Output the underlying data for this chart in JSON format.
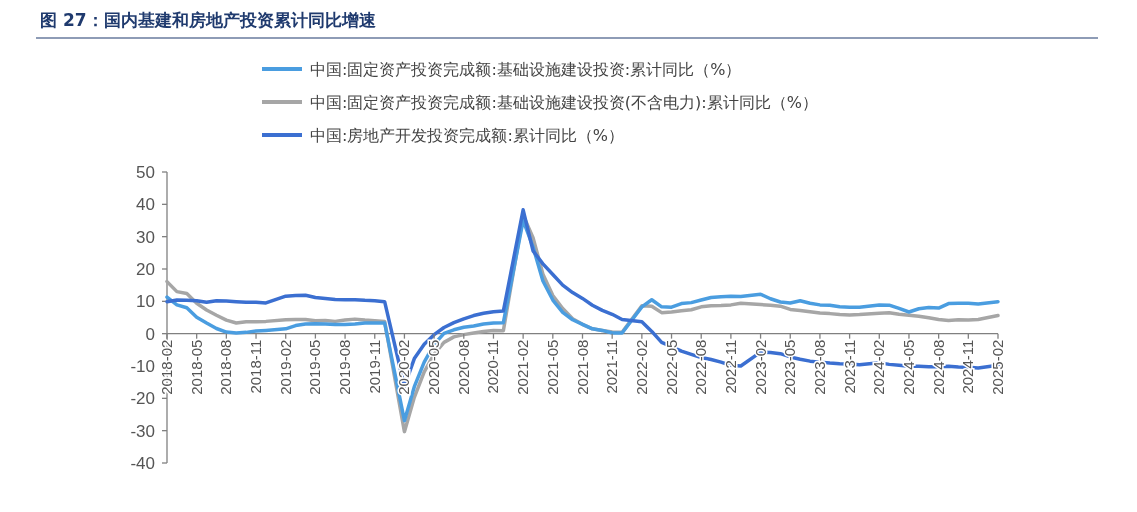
{
  "chart_data": {
    "type": "line",
    "title": "图 27：国内基建和房地产投资累计同比增速",
    "x": [
      "2018-02",
      "2018-03",
      "2018-04",
      "2018-05",
      "2018-06",
      "2018-07",
      "2018-08",
      "2018-09",
      "2018-10",
      "2018-11",
      "2018-12",
      "2019-02",
      "2019-03",
      "2019-04",
      "2019-05",
      "2019-06",
      "2019-07",
      "2019-08",
      "2019-09",
      "2019-10",
      "2019-11",
      "2019-12",
      "2020-02",
      "2020-03",
      "2020-04",
      "2020-05",
      "2020-06",
      "2020-07",
      "2020-08",
      "2020-09",
      "2020-10",
      "2020-11",
      "2020-12",
      "2021-02",
      "2021-03",
      "2021-04",
      "2021-05",
      "2021-06",
      "2021-07",
      "2021-08",
      "2021-09",
      "2021-10",
      "2021-11",
      "2021-12",
      "2022-02",
      "2022-03",
      "2022-04",
      "2022-05",
      "2022-06",
      "2022-07",
      "2022-08",
      "2022-09",
      "2022-10",
      "2022-11",
      "2022-12",
      "2023-02",
      "2023-03",
      "2023-04",
      "2023-05",
      "2023-06",
      "2023-07",
      "2023-08",
      "2023-09",
      "2023-10",
      "2023-11",
      "2023-12",
      "2024-02",
      "2024-03",
      "2024-04",
      "2024-05",
      "2024-06",
      "2024-07",
      "2024-08",
      "2024-09",
      "2024-10",
      "2024-11",
      "2024-12",
      "2025-02"
    ],
    "series": [
      {
        "name": "中国:固定资产投资完成额:基础设施建设投资:累计同比（%）",
        "color": "#4a9de0",
        "values": [
          11.3,
          8.9,
          8.0,
          5.1,
          3.3,
          1.6,
          0.5,
          0.2,
          0.4,
          0.8,
          1.0,
          1.5,
          2.5,
          3.0,
          3.1,
          3.0,
          2.8,
          2.8,
          3.0,
          3.3,
          3.3,
          3.3,
          -26.9,
          -16.4,
          -8.8,
          -3.3,
          0.1,
          1.2,
          2.0,
          2.4,
          3.0,
          3.3,
          3.4,
          35.0,
          26.8,
          16.3,
          10.4,
          6.6,
          4.3,
          2.9,
          1.5,
          1.0,
          0.2,
          0.2,
          8.3,
          10.5,
          8.3,
          8.2,
          9.3,
          9.6,
          10.4,
          11.2,
          11.4,
          11.6,
          11.5,
          12.2,
          10.8,
          9.8,
          9.5,
          10.2,
          9.4,
          8.9,
          8.8,
          8.3,
          8.2,
          8.2,
          8.9,
          8.8,
          7.8,
          6.7,
          7.7,
          8.1,
          7.9,
          9.3,
          9.4,
          9.4,
          9.2,
          9.9
        ]
      },
      {
        "name": "中国:固定资产投资完成额:基础设施建设投资(不含电力):累计同比（%）",
        "color": "#a6a6a6",
        "values": [
          16.1,
          13.0,
          12.4,
          9.4,
          7.3,
          5.7,
          4.2,
          3.3,
          3.7,
          3.7,
          3.8,
          4.3,
          4.4,
          4.4,
          4.0,
          4.1,
          3.8,
          4.2,
          4.5,
          4.2,
          4.0,
          3.8,
          -30.3,
          -19.7,
          -11.8,
          -6.3,
          -2.7,
          -1.0,
          -0.3,
          0.2,
          0.7,
          1.0,
          0.9,
          36.6,
          29.7,
          18.4,
          11.8,
          7.8,
          4.6,
          2.9,
          1.5,
          1.0,
          0.5,
          0.4,
          8.6,
          8.5,
          6.5,
          6.7,
          7.1,
          7.4,
          8.3,
          8.6,
          8.7,
          8.9,
          9.4,
          9.0,
          8.8,
          8.5,
          7.5,
          7.2,
          6.8,
          6.4,
          6.2,
          5.9,
          5.8,
          5.9,
          6.3,
          6.5,
          6.0,
          5.7,
          5.4,
          4.9,
          4.4,
          4.1,
          4.3,
          4.2,
          4.4,
          5.6
        ]
      },
      {
        "name": "中国:房地产开发投资完成额:累计同比（%）",
        "color": "#3b6fd1",
        "values": [
          9.9,
          10.4,
          10.3,
          10.2,
          9.7,
          10.2,
          10.1,
          9.9,
          9.7,
          9.7,
          9.5,
          11.6,
          11.8,
          11.9,
          11.2,
          10.9,
          10.6,
          10.5,
          10.5,
          10.3,
          10.2,
          9.9,
          -16.3,
          -7.7,
          -3.3,
          -0.3,
          1.9,
          3.4,
          4.6,
          5.6,
          6.3,
          6.8,
          7.0,
          38.3,
          25.6,
          21.6,
          18.3,
          15.0,
          12.7,
          10.9,
          8.8,
          7.2,
          6.0,
          4.4,
          3.7,
          0.7,
          -2.7,
          -4.0,
          -5.4,
          -6.4,
          -7.4,
          -8.0,
          -8.8,
          -9.8,
          -10.0,
          -5.7,
          -5.8,
          -6.2,
          -7.2,
          -7.9,
          -8.5,
          -8.8,
          -9.1,
          -9.3,
          -9.4,
          -9.6,
          -9.0,
          -9.5,
          -9.8,
          -10.1,
          -10.1,
          -10.2,
          -10.2,
          -10.1,
          -10.3,
          -10.4,
          -10.6,
          -9.8
        ]
      }
    ],
    "xlim": [
      "2018-02",
      "2025-02"
    ],
    "xticks": [
      "2018-02",
      "2018-05",
      "2018-08",
      "2018-11",
      "2019-02",
      "2019-05",
      "2019-08",
      "2019-11",
      "2020-02",
      "2020-05",
      "2020-08",
      "2020-11",
      "2021-02",
      "2021-05",
      "2021-08",
      "2021-11",
      "2022-02",
      "2022-05",
      "2022-08",
      "2022-11",
      "2023-02",
      "2023-05",
      "2023-08",
      "2023-11",
      "2024-02",
      "2024-05",
      "2024-08",
      "2024-11",
      "2025-02"
    ],
    "ylim": [
      -40,
      50
    ],
    "yticks": [
      -40,
      -30,
      -20,
      -10,
      0,
      10,
      20,
      30,
      40,
      50
    ],
    "legend": "top",
    "grid": false,
    "marker": "none",
    "line_style": "solid"
  }
}
